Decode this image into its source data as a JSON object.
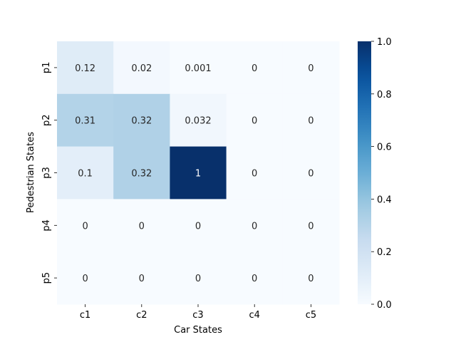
{
  "chart_data": {
    "type": "heatmap",
    "title": "",
    "xlabel": "Car States",
    "ylabel": "Pedestrian States",
    "x_categories": [
      "c1",
      "c2",
      "c3",
      "c4",
      "c5"
    ],
    "y_categories": [
      "p1",
      "p2",
      "p3",
      "p4",
      "p5"
    ],
    "values": [
      [
        0.12,
        0.02,
        0.001,
        0,
        0
      ],
      [
        0.31,
        0.32,
        0.032,
        0,
        0
      ],
      [
        0.1,
        0.32,
        1,
        0,
        0
      ],
      [
        0,
        0,
        0,
        0,
        0
      ],
      [
        0,
        0,
        0,
        0,
        0
      ]
    ],
    "value_labels": [
      [
        "0.12",
        "0.02",
        "0.001",
        "0",
        "0"
      ],
      [
        "0.31",
        "0.32",
        "0.032",
        "0",
        "0"
      ],
      [
        "0.1",
        "0.32",
        "1",
        "0",
        "0"
      ],
      [
        "0",
        "0",
        "0",
        "0",
        "0"
      ],
      [
        "0",
        "0",
        "0",
        "0",
        "0"
      ]
    ],
    "colormap": "Blues",
    "colorbar": {
      "range": [
        0.0,
        1.0
      ],
      "ticks": [
        0.0,
        0.2,
        0.4,
        0.6,
        0.8,
        1.0
      ],
      "tick_labels": [
        "0.0",
        "0.2",
        "0.4",
        "0.6",
        "0.8",
        "1.0"
      ]
    },
    "colors": {
      "low": "#f7fbff",
      "high": "#08306b"
    }
  }
}
